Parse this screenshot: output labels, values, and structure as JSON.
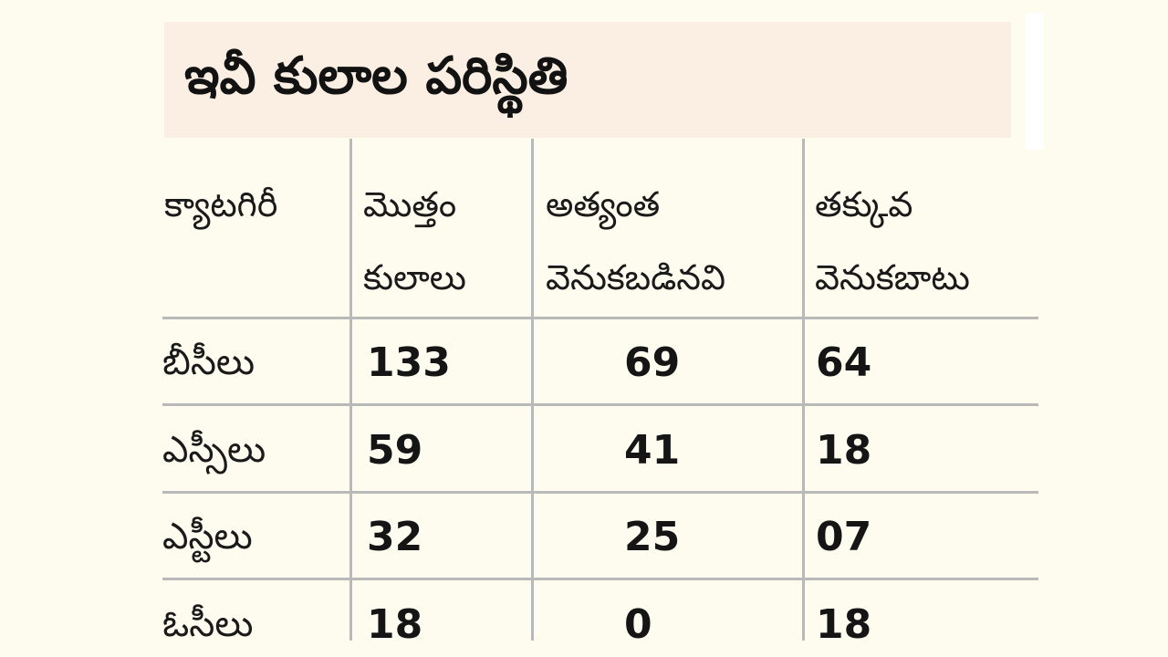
{
  "title": "ఇవీ కులాల పరిస్థితి",
  "headers": {
    "category": "క్యాటగిరీ",
    "total_line1": "మొత్తం",
    "total_line2": "కులాలు",
    "most_line1": "అత్యంత",
    "most_line2": "వెనుకబడినవి",
    "less_line1": "తక్కువ",
    "less_line2": "వెనుకబాటు"
  },
  "rows": [
    {
      "category": "బీసీలు",
      "total": "133",
      "most_backward": "69",
      "less_backward": "64"
    },
    {
      "category": "ఎస్సీలు",
      "total": "59",
      "most_backward": "41",
      "less_backward": "18"
    },
    {
      "category": "ఎస్టీలు",
      "total": "32",
      "most_backward": "25",
      "less_backward": "07"
    },
    {
      "category": "ఓసీలు",
      "total": "18",
      "most_backward": "0",
      "less_backward": "18"
    }
  ]
}
